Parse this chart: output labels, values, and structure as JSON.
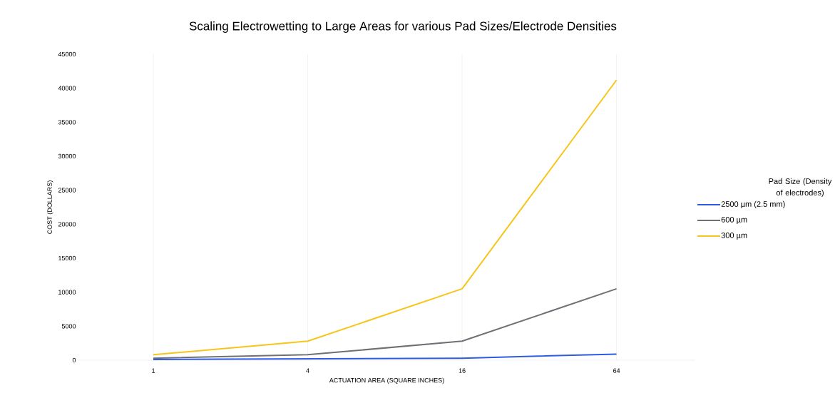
{
  "chart_data": {
    "type": "line",
    "title": "Scaling Electrowetting to Large Areas for various Pad Sizes/Electrode Densities",
    "xlabel": "ACTUATION AREA (SQUARE INCHES)",
    "ylabel": "COST (DOLLARS)",
    "legend_title": "Pad Size (Density of electrodes)",
    "categories": [
      "1",
      "4",
      "16",
      "64"
    ],
    "series": [
      {
        "name": "2500 µm (2.5 mm)",
        "color": "#2f5be0",
        "values": [
          100,
          200,
          300,
          900
        ]
      },
      {
        "name": "600 µm",
        "color": "#6e7075",
        "values": [
          300,
          800,
          2800,
          10500
        ]
      },
      {
        "name": "300 µm",
        "color": "#f7c51a",
        "values": [
          800,
          2800,
          10500,
          41200
        ]
      }
    ],
    "ylim": [
      0,
      45000
    ],
    "yticks": [
      0,
      5000,
      10000,
      15000,
      20000,
      25000,
      30000,
      35000,
      40000,
      45000
    ],
    "grid": "x",
    "legend": "right",
    "marker": "none",
    "line_style": "solid"
  }
}
